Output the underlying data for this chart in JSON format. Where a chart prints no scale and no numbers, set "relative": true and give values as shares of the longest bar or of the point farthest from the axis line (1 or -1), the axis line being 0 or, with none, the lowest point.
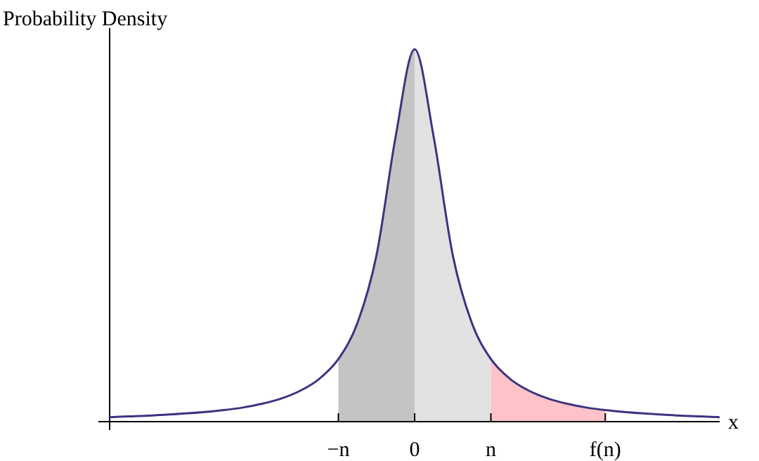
{
  "chart_data": {
    "type": "line",
    "relative": true,
    "ylabel": "Probability Density",
    "xlabel": "x",
    "categories": [
      null,
      null,
      null,
      null,
      null,
      null,
      null,
      null,
      null,
      null,
      null,
      null,
      "−n",
      null,
      null,
      null,
      "0",
      null,
      null,
      null,
      "n",
      null,
      null,
      null,
      null,
      null,
      "f(n)",
      null,
      null,
      null,
      null,
      null,
      null
    ],
    "series": [
      {
        "color": "#3b3580",
        "values": [
          0.012,
          0.014,
          0.016,
          0.019,
          0.022,
          0.026,
          0.031,
          0.038,
          0.048,
          0.062,
          0.083,
          0.115,
          0.168,
          0.265,
          0.447,
          0.764,
          1,
          0.764,
          0.447,
          0.265,
          0.168,
          0.115,
          0.083,
          0.062,
          0.048,
          0.038,
          0.031,
          0.026,
          0.022,
          0.019,
          0.016,
          0.014,
          0.012
        ]
      }
    ],
    "tick_labels": "x",
    "line_style": "solid",
    "bands": [
      {
        "axis": "x",
        "from": "−n",
        "to": "0",
        "color": "#c4c4c4"
      },
      {
        "axis": "x",
        "from": "0",
        "to": "n",
        "color": "#e2e2e2"
      },
      {
        "axis": "x",
        "from": "n",
        "to": "f(n)",
        "color": "#ffc2c8"
      }
    ]
  }
}
